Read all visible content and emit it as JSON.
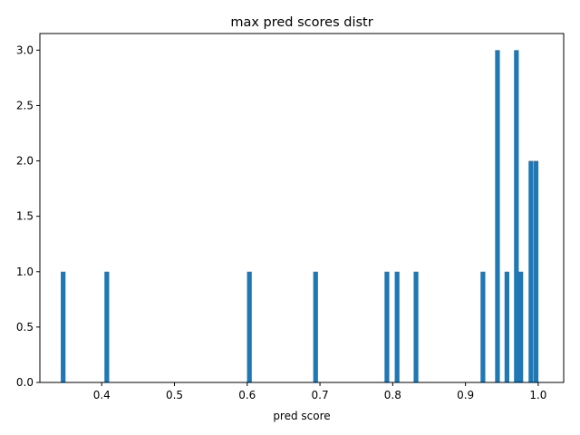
{
  "chart_data": {
    "type": "bar",
    "title": "max pred scores distr",
    "xlabel": "pred score",
    "ylabel": "",
    "xlim": [
      0.315,
      1.035
    ],
    "ylim": [
      0,
      3.15
    ],
    "x_ticks": [
      0.4,
      0.5,
      0.6,
      0.7,
      0.8,
      0.9,
      1.0
    ],
    "x_tick_labels": [
      "0.4",
      "0.5",
      "0.6",
      "0.7",
      "0.8",
      "0.9",
      "1.0"
    ],
    "y_ticks": [
      0,
      0.5,
      1.0,
      1.5,
      2.0,
      2.5,
      3.0
    ],
    "y_tick_labels": [
      "0.0",
      "0.5",
      "1.0",
      "1.5",
      "2.0",
      "2.5",
      "3.0"
    ],
    "bin_width": 0.0065,
    "bars": [
      {
        "x": 0.347,
        "value": 1
      },
      {
        "x": 0.407,
        "value": 1
      },
      {
        "x": 0.603,
        "value": 1
      },
      {
        "x": 0.694,
        "value": 1
      },
      {
        "x": 0.792,
        "value": 1
      },
      {
        "x": 0.806,
        "value": 1
      },
      {
        "x": 0.832,
        "value": 1
      },
      {
        "x": 0.924,
        "value": 1
      },
      {
        "x": 0.944,
        "value": 3
      },
      {
        "x": 0.957,
        "value": 1
      },
      {
        "x": 0.97,
        "value": 3
      },
      {
        "x": 0.976,
        "value": 1
      },
      {
        "x": 0.99,
        "value": 2
      },
      {
        "x": 0.997,
        "value": 2
      }
    ],
    "grid": false,
    "legend": "none",
    "bar_color": "#1f77b4"
  }
}
